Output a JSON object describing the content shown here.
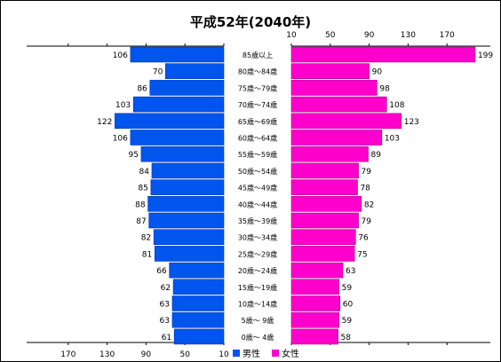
{
  "chart_data": {
    "type": "bar",
    "title": "平成52年(2040年)",
    "categories": [
      "85歳以上",
      "80歳～84歳",
      "75歳～79歳",
      "70歳～74歳",
      "65歳～69歳",
      "60歳～64歳",
      "55歳～59歳",
      "50歳～54歳",
      "45歳～49歳",
      "40歳～44歳",
      "35歳～39歳",
      "30歳～34歳",
      "25歳～29歳",
      "20歳～24歳",
      "15歳～19歳",
      "10歳～14歳",
      "5歳～ 9歳",
      "0歳～ 4歳"
    ],
    "series": [
      {
        "name": "男性",
        "color": "#0055ee",
        "values": [
          106,
          70,
          86,
          103,
          122,
          106,
          95,
          84,
          85,
          88,
          87,
          82,
          81,
          66,
          62,
          63,
          63,
          61
        ]
      },
      {
        "name": "女性",
        "color": "#ff00cc",
        "values": [
          199,
          90,
          98,
          108,
          123,
          103,
          89,
          79,
          78,
          82,
          79,
          76,
          75,
          63,
          59,
          60,
          59,
          58
        ]
      }
    ],
    "left_axis_ticks": [
      "170",
      "130",
      "90",
      "50",
      "10"
    ],
    "right_axis_ticks": [
      "10",
      "50",
      "90",
      "130",
      "170"
    ],
    "legend": [
      "男性",
      "女性"
    ],
    "legend_position": "bottom-center"
  }
}
